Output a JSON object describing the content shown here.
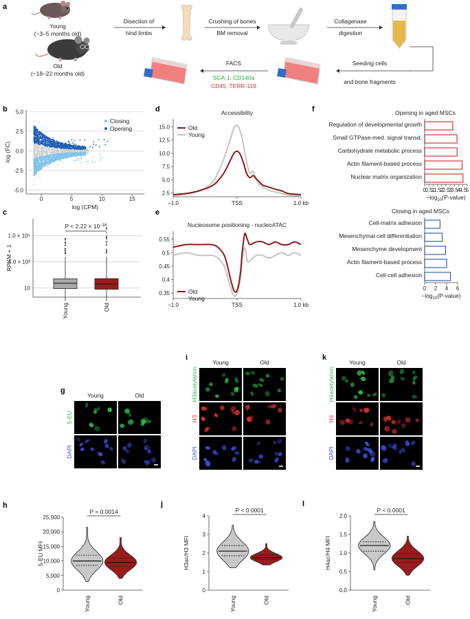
{
  "panels": {
    "a": {
      "letter": "a",
      "young_label": "Young",
      "young_age": "(~3–5 months old)",
      "old_label": "Old",
      "old_age": "(~18–22 months old)",
      "step1": "Disection of",
      "step1b": "hind limbs",
      "step2": "Crushing of bones",
      "step2b": "BM removal",
      "step3": "Collagenase",
      "step3b": "digestion",
      "step4": "Seeding cells",
      "step4b": "and bone fragments",
      "facs": "FACS",
      "facs_pos": "SCA-1, CD140a",
      "facs_neg": "CD45, TERR-119",
      "color_pos": "#2eaa3a",
      "color_neg": "#e8302a"
    },
    "b": {
      "letter": "b",
      "legend_closing": "Closing",
      "legend_opening": "Opening",
      "xlabel": "log (CPM)",
      "ylabel": "log (FC)",
      "color_closing": "#7ec3ea",
      "color_opening": "#1f5fb4"
    },
    "c": {
      "letter": "c",
      "ylabel": "RPKM + 1",
      "pvalue": "P < 2.22 × 10",
      "pvalue_exp": "−16",
      "xlabel_young": "Young",
      "xlabel_old": "Old",
      "color_young": "#a9a9a9",
      "color_old": "#9a1c1c"
    },
    "d": {
      "letter": "d",
      "title": "Accessibility",
      "legend_old": "Old",
      "legend_young": "Young",
      "x_ticks": [
        "−1.0",
        "TSS",
        "1.0 kb"
      ],
      "color_old": "#8b1a1a",
      "color_young": "#c4c4c4"
    },
    "e": {
      "letter": "e",
      "title": "Nucleosome positioning - nucleoATAC",
      "legend_old": "Old",
      "legend_young": "Young",
      "x_ticks": [
        "−1.0",
        "TSS",
        "1.0 kb"
      ]
    },
    "f": {
      "letter": "f",
      "opening_title": "Opening in aged MSCs",
      "closing_title": "Closing in aged MSCs",
      "xlabel": "−log",
      "xlabel_sub": "10",
      "xlabel_tail": "(P-value)",
      "color_open": "#d93535",
      "color_close": "#3d5eb0"
    },
    "g": {
      "letter": "g",
      "col_young": "Young",
      "col_old": "Old",
      "row1": "5-EU",
      "row2": "DAPI"
    },
    "h": {
      "letter": "h",
      "pvalue": "P = 0.0014",
      "ylabel": "5-EU MFI",
      "xlabel_young": "Young",
      "xlabel_old": "Old"
    },
    "i": {
      "letter": "i",
      "col_young": "Young",
      "col_old": "Old",
      "row1": "H3acetylation",
      "row2": "H3",
      "row3": "DAPI"
    },
    "j": {
      "letter": "j",
      "pvalue": "P < 0.0001",
      "ylabel": "H3ac/H3 MFI",
      "xlabel_young": "Young",
      "xlabel_old": "Old"
    },
    "k": {
      "letter": "k",
      "col_young": "Young",
      "col_old": "Old",
      "row1": "H4acetylation",
      "row2": "H4",
      "row3": "DAPI"
    },
    "l": {
      "letter": "l",
      "pvalue": "P < 0.0001",
      "ylabel": "H4ac/H4 MFI",
      "xlabel_young": "Young",
      "xlabel_old": "Old"
    }
  },
  "chart_data": [
    {
      "id": "b",
      "type": "scatter",
      "xlabel": "log (CPM)",
      "ylabel": "log (FC)",
      "xlim": [
        -2.5,
        17
      ],
      "ylim": [
        -5.5,
        5.2
      ],
      "x_ticks": [
        0,
        5,
        10,
        15
      ],
      "y_ticks": [
        -5.0,
        -2.5,
        0.0,
        2.5,
        5.0
      ],
      "series": [
        {
          "name": "Closing",
          "color": "#7ec3ea"
        },
        {
          "name": "Opening",
          "color": "#1f5fb4"
        }
      ],
      "legend": "top-right"
    },
    {
      "id": "c",
      "type": "box",
      "ylabel": "RPKM + 1",
      "scale": "log",
      "y_ticks": [
        "10",
        "1.0 × 10^3",
        "1.0 × 10^5"
      ],
      "categories": [
        "Young",
        "Old"
      ],
      "boxes": [
        {
          "q1": 9,
          "median": 23,
          "q3": 50,
          "whisker_low": 1,
          "whisker_high": 2500
        },
        {
          "q1": 8,
          "median": 20,
          "q3": 52,
          "whisker_low": 1,
          "whisker_high": 2500
        }
      ],
      "annotation": "P < 2.22 × 10^−16"
    },
    {
      "id": "d",
      "type": "line",
      "title": "Accessibility",
      "x_ticks": [
        "−1.0",
        "TSS",
        "1.0 kb"
      ],
      "xlim": [
        -1,
        1
      ],
      "ylim": [
        1.8,
        16.5
      ],
      "y_ticks": [
        2.5,
        5.0,
        7.5,
        10.0,
        12.5,
        15.0
      ],
      "x": [
        -1.0,
        -0.8,
        -0.6,
        -0.4,
        -0.3,
        -0.2,
        -0.1,
        -0.05,
        0.0,
        0.05,
        0.1,
        0.15,
        0.2,
        0.25,
        0.3,
        0.35,
        0.4,
        0.5,
        0.6,
        0.7,
        0.8,
        1.0
      ],
      "series": [
        {
          "name": "Old",
          "color": "#8b1a1a",
          "values": [
            2.2,
            2.4,
            2.9,
            3.8,
            4.8,
            6.4,
            8.8,
            10.0,
            10.4,
            9.8,
            8.2,
            6.2,
            5.4,
            5.8,
            5.2,
            4.6,
            4.0,
            3.6,
            3.2,
            2.9,
            2.4,
            2.2
          ]
        },
        {
          "name": "Young",
          "color": "#c4c4c4",
          "values": [
            2.0,
            2.3,
            2.9,
            4.3,
            6.3,
            9.2,
            12.8,
            14.8,
            15.3,
            14.2,
            11.7,
            8.3,
            6.3,
            6.6,
            5.1,
            4.1,
            3.6,
            3.0,
            2.7,
            2.4,
            2.1,
            2.0
          ]
        }
      ],
      "legend": "top-left"
    },
    {
      "id": "e",
      "type": "line",
      "title": "Nucleosome positioning - nucleoATAC",
      "x_ticks": [
        "−1.0",
        "TSS",
        "1.0 kb"
      ],
      "xlim": [
        -1,
        1
      ],
      "ylim": [
        0.33,
        0.58
      ],
      "y_ticks": [
        0.35,
        0.4,
        0.45,
        0.5,
        0.55
      ],
      "x": [
        -1.0,
        -0.8,
        -0.6,
        -0.4,
        -0.3,
        -0.2,
        -0.15,
        -0.1,
        -0.05,
        0.0,
        0.05,
        0.08,
        0.12,
        0.16,
        0.2,
        0.3,
        0.4,
        0.5,
        0.6,
        0.7,
        0.8,
        0.9,
        1.0
      ],
      "series": [
        {
          "name": "Old",
          "color": "#8b1a1a",
          "values": [
            0.52,
            0.53,
            0.53,
            0.53,
            0.52,
            0.49,
            0.45,
            0.4,
            0.36,
            0.36,
            0.42,
            0.5,
            0.57,
            0.55,
            0.53,
            0.54,
            0.54,
            0.53,
            0.54,
            0.53,
            0.53,
            0.54,
            0.53
          ]
        },
        {
          "name": "Young",
          "color": "#c4c4c4",
          "values": [
            0.49,
            0.5,
            0.49,
            0.49,
            0.48,
            0.45,
            0.41,
            0.37,
            0.34,
            0.35,
            0.4,
            0.47,
            0.52,
            0.47,
            0.47,
            0.49,
            0.49,
            0.48,
            0.49,
            0.5,
            0.49,
            0.5,
            0.49
          ]
        }
      ],
      "legend": "bottom-left"
    },
    {
      "id": "f_opening",
      "type": "bar",
      "orientation": "horizontal",
      "title": "Opening in aged MSCs",
      "categories": [
        "Regulation of developmental growth",
        "Small GTPase-med. signal transd.",
        "Carbohydrate metabolic process",
        "Actin filament-based process",
        "Nuclear matrix organization"
      ],
      "values": [
        3.3,
        3.8,
        3.8,
        4.4,
        4.5
      ],
      "xlim": [
        0,
        5
      ],
      "x_ticks": [
        0,
        0.5,
        1,
        1.5,
        2,
        2.5,
        3,
        3.5,
        4,
        4.5,
        5
      ],
      "color": "#d93535"
    },
    {
      "id": "f_closing",
      "type": "bar",
      "orientation": "horizontal",
      "title": "Closing in aged MSCs",
      "categories": [
        "Cell-matrix adhesion",
        "Mesenchymal cell differentiation",
        "Mesenchyme development",
        "Actin filament-based process",
        "Cell-cell adhesion"
      ],
      "values": [
        2.8,
        3.2,
        3.8,
        4.0,
        4.7
      ],
      "xlim": [
        0,
        6
      ],
      "x_ticks": [
        0,
        2,
        4,
        6
      ],
      "color": "#3d5eb0"
    },
    {
      "id": "h",
      "type": "violin",
      "ylabel": "5-EU MFI",
      "categories": [
        "Young",
        "Old"
      ],
      "ylim": [
        0,
        25000
      ],
      "y_ticks": [
        0,
        5000,
        10000,
        15000,
        20000,
        25000
      ],
      "y_tick_labels": [
        "0",
        "5,000",
        "10,000",
        "15,000",
        "20,000",
        "25,000"
      ],
      "series": [
        {
          "name": "Young",
          "color": "#c8c8c8",
          "min": 3000,
          "max": 21500,
          "q1": 8500,
          "median": 10000,
          "q3": 12000
        },
        {
          "name": "Old",
          "color": "#9a1c1c",
          "min": 4000,
          "max": 18000,
          "q1": 8200,
          "median": 9500,
          "q3": 11000
        }
      ],
      "annotation": "P = 0.0014"
    },
    {
      "id": "j",
      "type": "violin",
      "ylabel": "H3ac/H3 MFI",
      "categories": [
        "Young",
        "Old"
      ],
      "ylim": [
        0,
        4
      ],
      "y_ticks": [
        0,
        1,
        2,
        3,
        4
      ],
      "series": [
        {
          "name": "Young",
          "color": "#c8c8c8",
          "min": 1.2,
          "max": 3.5,
          "q1": 1.85,
          "median": 2.1,
          "q3": 2.4
        },
        {
          "name": "Old",
          "color": "#9a1c1c",
          "min": 1.35,
          "max": 2.5,
          "q1": 1.65,
          "median": 1.75,
          "q3": 1.9
        }
      ],
      "annotation": "P < 0.0001"
    },
    {
      "id": "l",
      "type": "violin",
      "ylabel": "H4ac/H4 MFI",
      "categories": [
        "Young",
        "Old"
      ],
      "ylim": [
        0.0,
        2.0
      ],
      "y_ticks": [
        0.0,
        0.5,
        1.0,
        1.5,
        2.0
      ],
      "y_tick_labels": [
        "0.0",
        "0.5",
        "1.0",
        "1.5",
        "2.0"
      ],
      "series": [
        {
          "name": "Young",
          "color": "#c8c8c8",
          "min": 0.55,
          "max": 1.85,
          "q1": 1.05,
          "median": 1.2,
          "q3": 1.3
        },
        {
          "name": "Old",
          "color": "#9a1c1c",
          "min": 0.4,
          "max": 1.45,
          "q1": 0.75,
          "median": 0.85,
          "q3": 0.98
        }
      ],
      "annotation": "P < 0.0001"
    }
  ]
}
